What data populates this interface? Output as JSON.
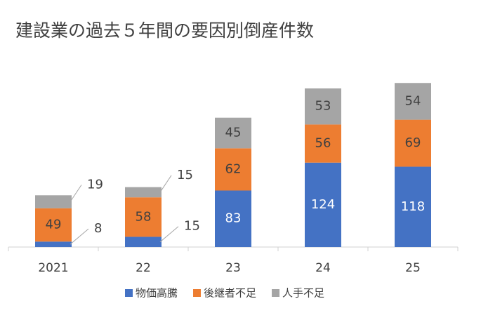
{
  "chart_data": {
    "type": "bar",
    "stacked": true,
    "title": "建設業の過去５年間の要因別倒産件数",
    "categories": [
      "2021",
      "22",
      "23",
      "24",
      "25"
    ],
    "series": [
      {
        "name": "物価高騰",
        "color": "#4472c4",
        "values": [
          8,
          15,
          83,
          124,
          118
        ]
      },
      {
        "name": "後継者不足",
        "color": "#ed7d31",
        "values": [
          49,
          58,
          62,
          56,
          69
        ]
      },
      {
        "name": "人手不足",
        "color": "#a5a5a5",
        "values": [
          19,
          15,
          45,
          53,
          54
        ]
      }
    ],
    "legend": "bottom"
  }
}
